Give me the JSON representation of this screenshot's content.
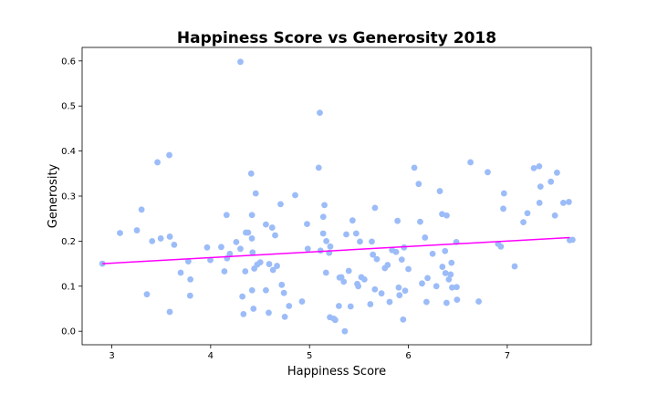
{
  "chart_data": {
    "type": "scatter",
    "title": "Happiness Score vs Generosity 2018",
    "xlabel": "Happiness Score",
    "ylabel": "Generosity",
    "xlim": [
      2.7,
      7.85
    ],
    "ylim": [
      -0.03,
      0.63
    ],
    "xticks": [
      3,
      4,
      5,
      6,
      7
    ],
    "yticks": [
      0.0,
      0.1,
      0.2,
      0.3,
      0.4,
      0.5,
      0.6
    ],
    "grid": false,
    "point_color": "#9cbcf8",
    "trend_color": "#ff00ff",
    "trend_line": {
      "x": [
        2.905,
        7.632
      ],
      "y": [
        0.15,
        0.208
      ]
    },
    "points": [
      [
        2.905,
        0.15
      ],
      [
        3.083,
        0.218
      ],
      [
        3.254,
        0.224
      ],
      [
        3.301,
        0.27
      ],
      [
        3.355,
        0.082
      ],
      [
        3.408,
        0.2
      ],
      [
        3.462,
        0.375
      ],
      [
        3.495,
        0.206
      ],
      [
        3.582,
        0.391
      ],
      [
        3.586,
        0.043
      ],
      [
        3.587,
        0.21
      ],
      [
        3.631,
        0.192
      ],
      [
        3.697,
        0.13
      ],
      [
        3.774,
        0.155
      ],
      [
        3.795,
        0.115
      ],
      [
        3.792,
        0.079
      ],
      [
        3.964,
        0.186
      ],
      [
        3.997,
        0.158
      ],
      [
        4.107,
        0.187
      ],
      [
        4.139,
        0.133
      ],
      [
        4.161,
        0.258
      ],
      [
        4.166,
        0.162
      ],
      [
        4.194,
        0.172
      ],
      [
        4.259,
        0.198
      ],
      [
        4.301,
        0.598
      ],
      [
        4.301,
        0.183
      ],
      [
        4.321,
        0.077
      ],
      [
        4.332,
        0.038
      ],
      [
        4.356,
        0.219
      ],
      [
        4.35,
        0.133
      ],
      [
        4.379,
        0.219
      ],
      [
        4.41,
        0.35
      ],
      [
        4.417,
        0.206
      ],
      [
        4.418,
        0.258
      ],
      [
        4.419,
        0.091
      ],
      [
        4.424,
        0.175
      ],
      [
        4.433,
        0.05
      ],
      [
        4.441,
        0.139
      ],
      [
        4.456,
        0.306
      ],
      [
        4.471,
        0.148
      ],
      [
        4.502,
        0.153
      ],
      [
        4.559,
        0.237
      ],
      [
        4.559,
        0.091
      ],
      [
        4.587,
        0.041
      ],
      [
        4.592,
        0.149
      ],
      [
        4.622,
        0.23
      ],
      [
        4.631,
        0.136
      ],
      [
        4.652,
        0.213
      ],
      [
        4.671,
        0.145
      ],
      [
        4.707,
        0.282
      ],
      [
        4.719,
        0.103
      ],
      [
        4.741,
        0.085
      ],
      [
        4.75,
        0.032
      ],
      [
        4.793,
        0.056
      ],
      [
        4.855,
        0.302
      ],
      [
        4.924,
        0.066
      ],
      [
        4.975,
        0.238
      ],
      [
        4.982,
        0.183
      ],
      [
        5.093,
        0.363
      ],
      [
        5.104,
        0.485
      ],
      [
        5.111,
        0.179
      ],
      [
        5.138,
        0.217
      ],
      [
        5.151,
        0.28
      ],
      [
        5.139,
        0.254
      ],
      [
        5.167,
        0.13
      ],
      [
        5.17,
        0.2
      ],
      [
        5.199,
        0.174
      ],
      [
        5.206,
        0.031
      ],
      [
        5.21,
        0.188
      ],
      [
        5.245,
        0.028
      ],
      [
        5.26,
        0.025
      ],
      [
        5.297,
        0.056
      ],
      [
        5.303,
        0.119
      ],
      [
        5.322,
        0.12
      ],
      [
        5.346,
        0.11
      ],
      [
        5.357,
        0.0
      ],
      [
        5.372,
        0.215
      ],
      [
        5.397,
        0.134
      ],
      [
        5.416,
        0.055
      ],
      [
        5.435,
        0.246
      ],
      [
        5.472,
        0.217
      ],
      [
        5.483,
        0.105
      ],
      [
        5.493,
        0.1
      ],
      [
        5.51,
        0.199
      ],
      [
        5.524,
        0.12
      ],
      [
        5.555,
        0.115
      ],
      [
        5.615,
        0.06
      ],
      [
        5.63,
        0.199
      ],
      [
        5.641,
        0.17
      ],
      [
        5.662,
        0.274
      ],
      [
        5.661,
        0.093
      ],
      [
        5.681,
        0.16
      ],
      [
        5.728,
        0.084
      ],
      [
        5.762,
        0.14
      ],
      [
        5.79,
        0.147
      ],
      [
        5.81,
        0.065
      ],
      [
        5.835,
        0.18
      ],
      [
        5.875,
        0.176
      ],
      [
        5.89,
        0.245
      ],
      [
        5.902,
        0.097
      ],
      [
        5.91,
        0.08
      ],
      [
        5.933,
        0.159
      ],
      [
        5.947,
        0.026
      ],
      [
        5.956,
        0.186
      ],
      [
        5.967,
        0.09
      ],
      [
        6.0,
        0.138
      ],
      [
        6.06,
        0.363
      ],
      [
        6.104,
        0.327
      ],
      [
        6.119,
        0.243
      ],
      [
        6.138,
        0.106
      ],
      [
        6.168,
        0.208
      ],
      [
        6.183,
        0.065
      ],
      [
        6.194,
        0.118
      ],
      [
        6.245,
        0.172
      ],
      [
        6.283,
        0.1
      ],
      [
        6.318,
        0.311
      ],
      [
        6.344,
        0.143
      ],
      [
        6.341,
        0.26
      ],
      [
        6.371,
        0.178
      ],
      [
        6.375,
        0.129
      ],
      [
        6.387,
        0.257
      ],
      [
        6.386,
        0.063
      ],
      [
        6.409,
        0.115
      ],
      [
        6.427,
        0.126
      ],
      [
        6.436,
        0.152
      ],
      [
        6.442,
        0.097
      ],
      [
        6.485,
        0.198
      ],
      [
        6.492,
        0.07
      ],
      [
        6.488,
        0.098
      ],
      [
        6.628,
        0.375
      ],
      [
        6.711,
        0.066
      ],
      [
        6.802,
        0.353
      ],
      [
        6.907,
        0.194
      ],
      [
        6.935,
        0.188
      ],
      [
        6.96,
        0.272
      ],
      [
        6.967,
        0.306
      ],
      [
        7.075,
        0.144
      ],
      [
        7.163,
        0.242
      ],
      [
        7.204,
        0.262
      ],
      [
        7.269,
        0.362
      ],
      [
        7.323,
        0.366
      ],
      [
        7.326,
        0.285
      ],
      [
        7.336,
        0.321
      ],
      [
        7.441,
        0.332
      ],
      [
        7.482,
        0.257
      ],
      [
        7.503,
        0.352
      ],
      [
        7.567,
        0.285
      ],
      [
        7.623,
        0.287
      ],
      [
        7.632,
        0.202
      ],
      [
        7.66,
        0.203
      ]
    ]
  }
}
